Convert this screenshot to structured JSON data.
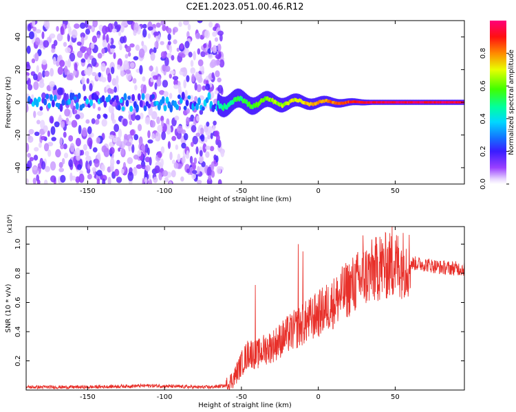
{
  "title": "C2E1.2023.051.00.46.R12",
  "chart_data": [
    {
      "type": "heatmap",
      "xlabel": "Height of straight line (km)",
      "ylabel": "Frequency (Hz)",
      "xlim": [
        -190,
        95
      ],
      "ylim": [
        -50,
        50
      ],
      "xticks": [
        -150,
        -100,
        -50,
        0,
        50
      ],
      "yticks": [
        -40,
        -20,
        0,
        20,
        40
      ],
      "colorbar": {
        "label": "Normalized spectral amplitude",
        "range": [
          0,
          1
        ],
        "ticks": [
          "0.0",
          "0.2",
          "0.4",
          "0.6",
          "0.8"
        ]
      },
      "description_data": {
        "noise_region_x": [
          -190,
          -65
        ],
        "signal_center_frequency_hz": 0,
        "signal_onset_km": -55
      }
    },
    {
      "type": "line",
      "xlabel": "Height of straight line (km)",
      "ylabel": "SNR (10 * v/v)",
      "y_multiplier": "(x10⁴)",
      "xlim": [
        -190,
        95
      ],
      "ylim": [
        0,
        1.12
      ],
      "xticks": [
        -150,
        -100,
        -50,
        0,
        50
      ],
      "yticks": [
        "0.2",
        "0.4",
        "0.6",
        "0.8",
        "1.0"
      ],
      "series": [
        {
          "color": "#e8302a",
          "x": [
            -190,
            -150,
            -110,
            -80,
            -70,
            -60,
            -55,
            -50,
            -45,
            -40,
            -35,
            -30,
            -20,
            -10,
            0,
            10,
            20,
            30,
            40,
            50,
            60,
            70,
            80,
            95
          ],
          "y": [
            0.02,
            0.02,
            0.03,
            0.02,
            0.02,
            0.03,
            0.08,
            0.18,
            0.26,
            0.24,
            0.28,
            0.3,
            0.38,
            0.45,
            0.52,
            0.6,
            0.7,
            0.78,
            0.84,
            0.86,
            0.87,
            0.86,
            0.84,
            0.83
          ],
          "peaks": [
            {
              "x": -41,
              "y": 0.72
            },
            {
              "x": -10,
              "y": 0.95
            },
            {
              "x": -13,
              "y": 1.0
            },
            {
              "x": 29,
              "y": 1.06
            },
            {
              "x": 48,
              "y": 1.12
            },
            {
              "x": 40,
              "y": 1.05
            }
          ]
        }
      ]
    }
  ]
}
